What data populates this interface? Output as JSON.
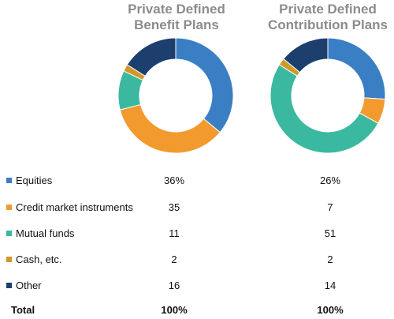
{
  "chart_data": [
    {
      "type": "pie",
      "title_lines": [
        "Private Defined",
        "Benefit Plans"
      ],
      "categories": [
        "Equities",
        "Credit market instruments",
        "Mutual funds",
        "Cash, etc.",
        "Other"
      ],
      "values": [
        36,
        35,
        11,
        2,
        16
      ],
      "labels": [
        "36%",
        "35",
        "11",
        "2",
        "16"
      ],
      "total_label": "100%"
    },
    {
      "type": "pie",
      "title_lines": [
        "Private Defined",
        "Contribution Plans"
      ],
      "categories": [
        "Equities",
        "Credit market instruments",
        "Mutual funds",
        "Cash, etc.",
        "Other"
      ],
      "values": [
        26,
        7,
        51,
        2,
        14
      ],
      "labels": [
        "26%",
        "7",
        "51",
        "2",
        "14"
      ],
      "total_label": "100%"
    }
  ],
  "legend": {
    "items": [
      {
        "label": "Equities",
        "color": "#3a7fc4"
      },
      {
        "label": "Credit market instruments",
        "color": "#f39a2e"
      },
      {
        "label": "Mutual funds",
        "color": "#3bb8a0"
      },
      {
        "label": "Cash, etc.",
        "color": "#cf9a2a"
      },
      {
        "label": "Other",
        "color": "#1d3f6e"
      }
    ],
    "total_label": "Total"
  }
}
